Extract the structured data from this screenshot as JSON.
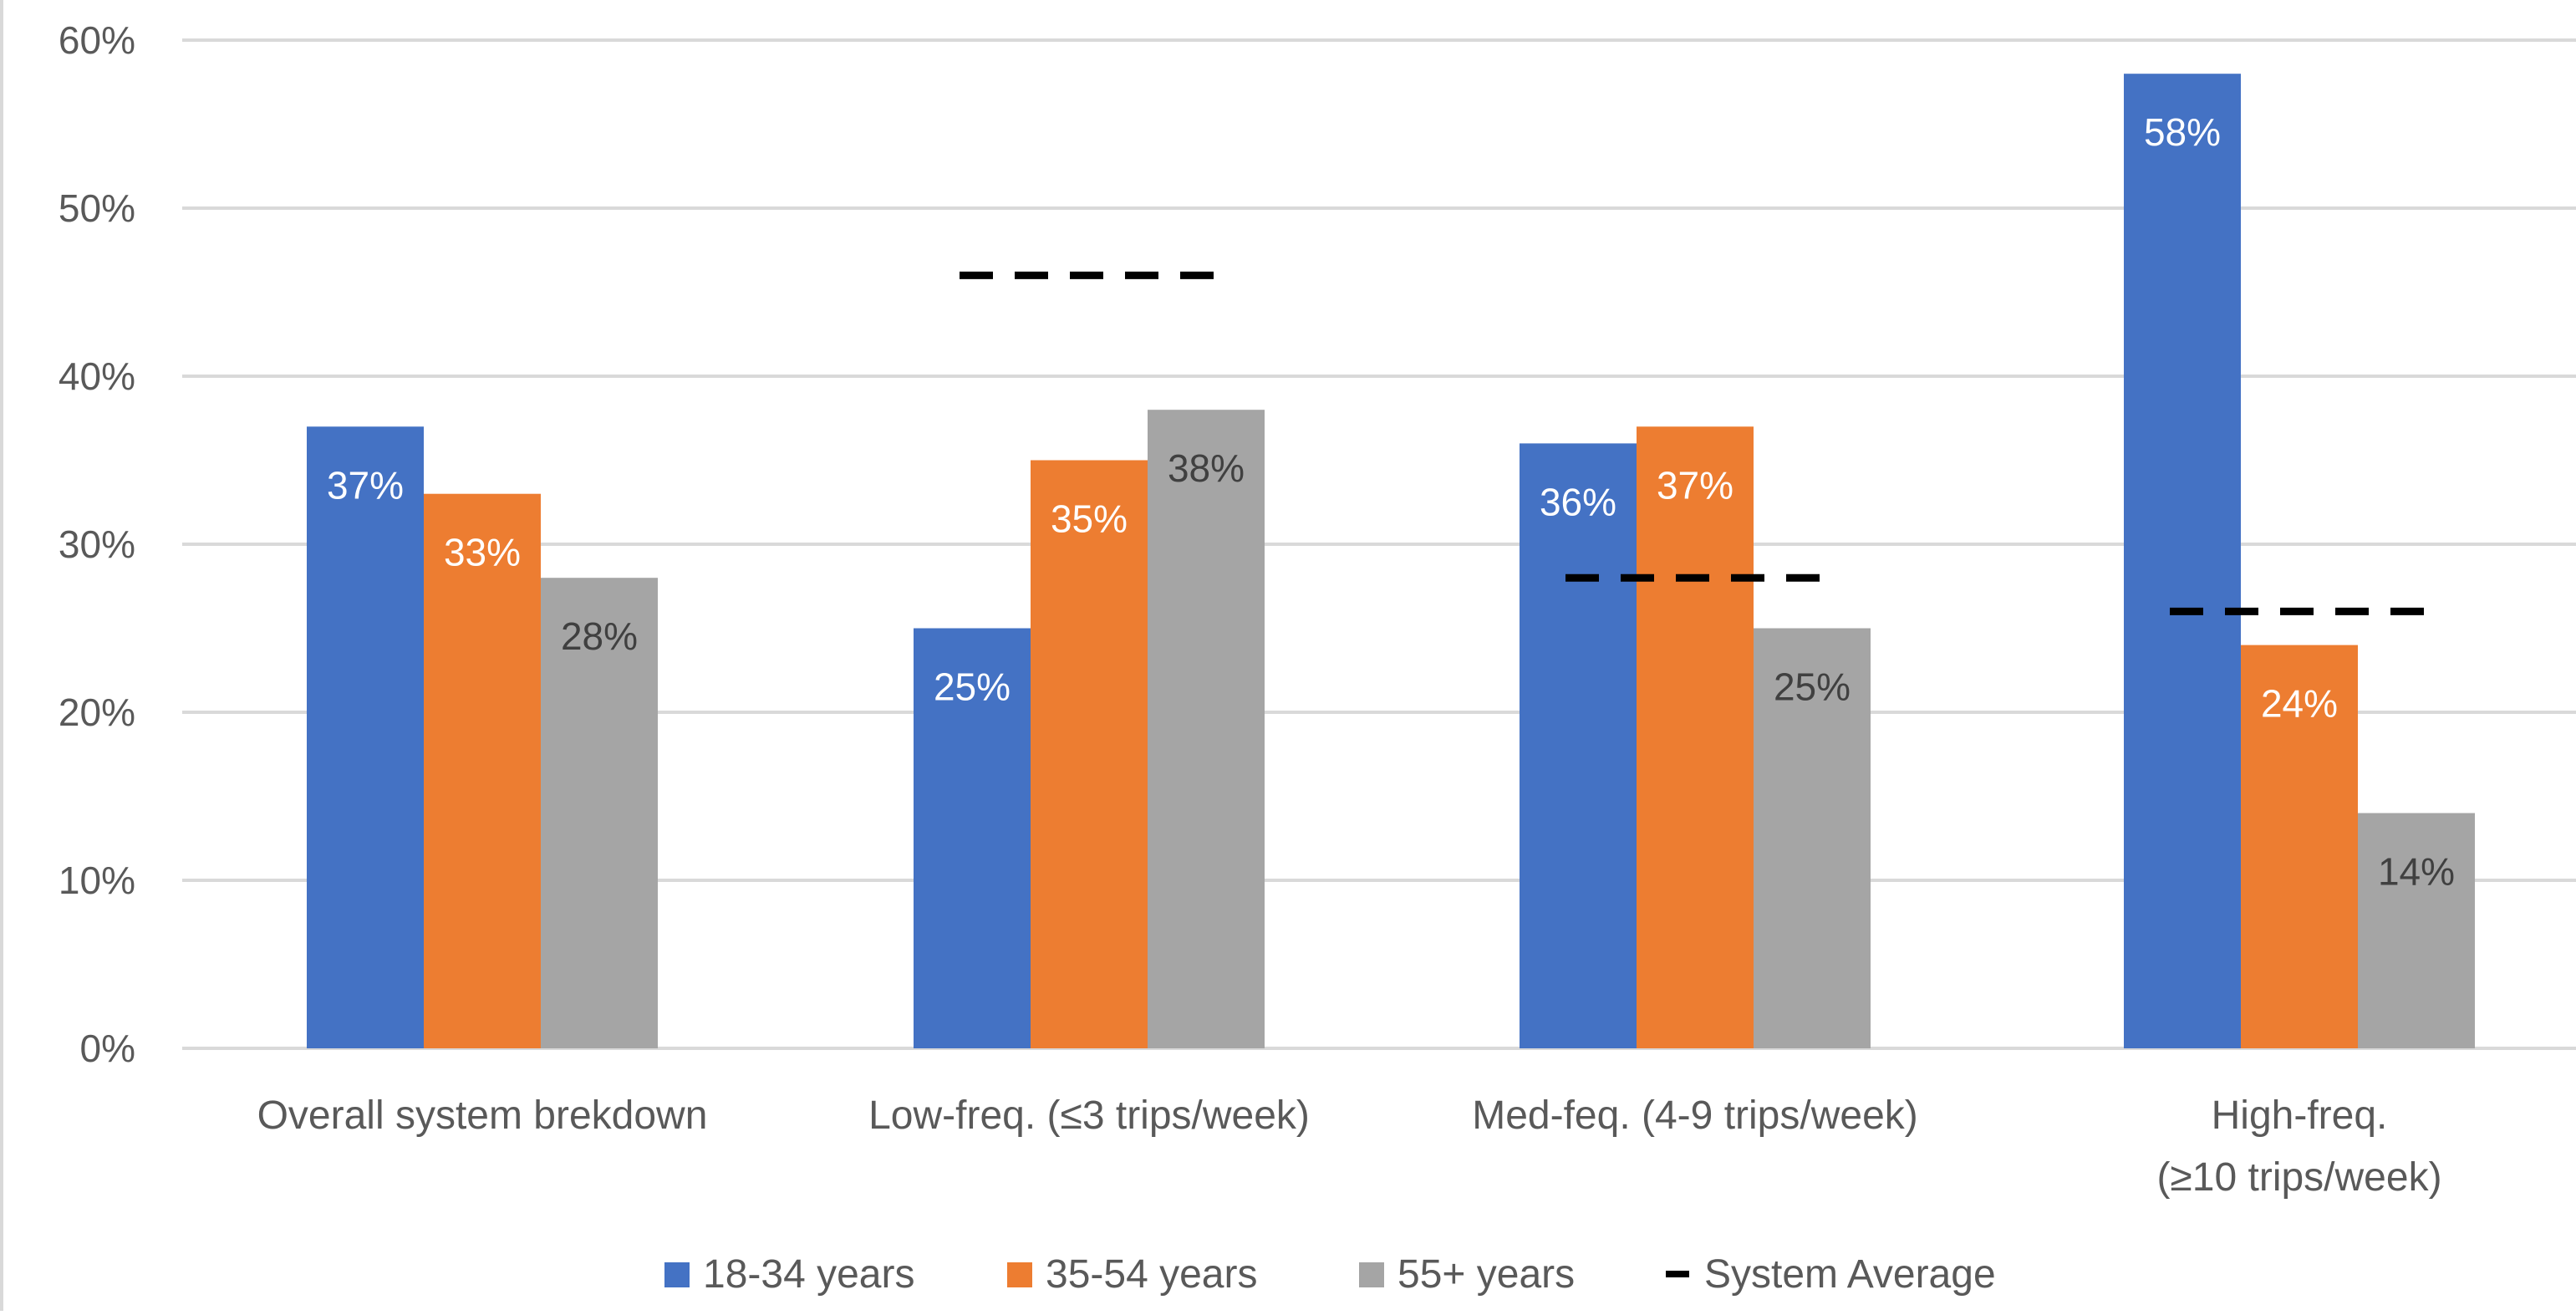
{
  "chart_data": {
    "type": "bar",
    "categories": [
      [
        "Overall system brekdown"
      ],
      [
        "Low-freq. (≤3 trips/week)"
      ],
      [
        "Med-feq. (4-9 trips/week)"
      ],
      [
        "High-freq.",
        "(≥10 trips/week)"
      ]
    ],
    "series": [
      {
        "name": "18-34 years",
        "color": "#4472C4",
        "values": [
          37,
          25,
          36,
          58
        ],
        "labels": [
          "37%",
          "25%",
          "36%",
          "58%"
        ]
      },
      {
        "name": "35-54 years",
        "color": "#ED7D31",
        "values": [
          33,
          35,
          37,
          24
        ],
        "labels": [
          "33%",
          "35%",
          "37%",
          "24%"
        ]
      },
      {
        "name": "55+ years",
        "color": "#A5A5A5",
        "values": [
          28,
          38,
          25,
          14
        ],
        "labels": [
          "28%",
          "38%",
          "25%",
          "14%"
        ]
      }
    ],
    "system_average": {
      "name": "System Average",
      "color": "#000000",
      "style": "dashed",
      "values": [
        null,
        46,
        28,
        26
      ]
    },
    "y_ticks": [
      "0%",
      "10%",
      "20%",
      "30%",
      "40%",
      "50%",
      "60%"
    ],
    "ylim": [
      0,
      60
    ],
    "grid": true,
    "legend_position": "bottom",
    "title": "",
    "xlabel": "",
    "ylabel": ""
  }
}
